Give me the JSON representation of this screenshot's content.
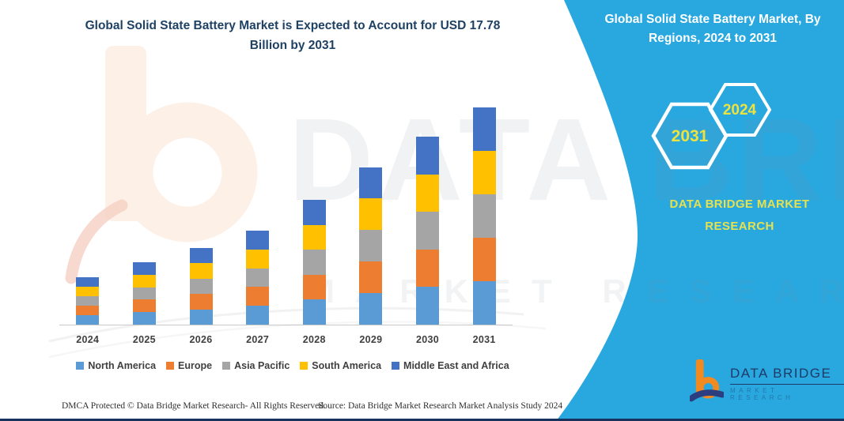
{
  "header": {
    "title_line1": "Global Solid State Battery Market is Expected to Account for USD 17.78",
    "title_line2": "Billion by 2031"
  },
  "side_panel": {
    "background_color": "#29A8E0",
    "title_line1": "Global Solid State Battery Market, By",
    "title_line2": "Regions, 2024 to 2031",
    "hexagon_left_label": "2031",
    "hexagon_right_label": "2024",
    "brand_line1": "DATA BRIDGE MARKET",
    "brand_line2": "RESEARCH",
    "accent_text_color": "#E6E14E"
  },
  "watermark": {
    "line1": "DATA BRIDGE",
    "line2": "MARKET RESEARCH"
  },
  "logo": {
    "name": "DATA BRIDGE",
    "subtitle": "MARKET RESEARCH"
  },
  "footer": {
    "left": "DMCA Protected © Data Bridge Market Research-  All Rights Reserved.",
    "right": "Source: Data Bridge Market Research  Market Analysis Study 2024"
  },
  "chart_data": {
    "type": "bar",
    "stacked": true,
    "title": "Global Solid State Battery Market, By Regions, 2024 to 2031",
    "unit": "USD Billion",
    "categories": [
      "2024",
      "2025",
      "2026",
      "2027",
      "2028",
      "2029",
      "2030",
      "2031"
    ],
    "series": [
      {
        "name": "North America",
        "color": "#5B9BD5",
        "values": [
          0.78,
          1.02,
          1.26,
          1.54,
          2.04,
          2.58,
          3.08,
          3.56
        ]
      },
      {
        "name": "Europe",
        "color": "#ED7D31",
        "values": [
          0.78,
          1.02,
          1.26,
          1.54,
          2.04,
          2.58,
          3.08,
          3.56
        ]
      },
      {
        "name": "Asia Pacific",
        "color": "#A5A5A5",
        "values": [
          0.78,
          1.02,
          1.26,
          1.54,
          2.04,
          2.58,
          3.08,
          3.55
        ]
      },
      {
        "name": "South America",
        "color": "#FFC000",
        "values": [
          0.78,
          1.02,
          1.26,
          1.54,
          2.04,
          2.58,
          3.08,
          3.56
        ]
      },
      {
        "name": "Middle East and Africa",
        "color": "#4472C4",
        "values": [
          0.78,
          1.02,
          1.26,
          1.54,
          2.04,
          2.58,
          3.08,
          3.55
        ]
      }
    ],
    "totals_estimated": [
      3.9,
      5.1,
      6.3,
      7.7,
      10.2,
      12.9,
      15.4,
      17.78
    ],
    "ylim": [
      0,
      18
    ],
    "grid": false,
    "legend_position": "bottom",
    "xlabel": "",
    "ylabel": ""
  }
}
